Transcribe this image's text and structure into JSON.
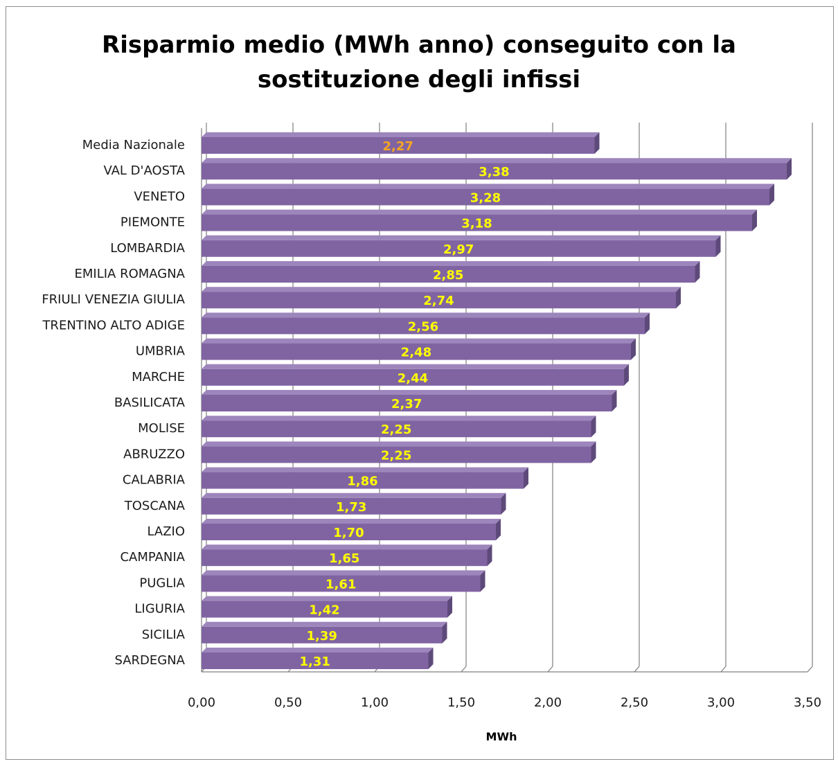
{
  "chart_data": {
    "type": "bar",
    "orientation": "horizontal",
    "title_lines": [
      "Risparmio medio (MWh  anno) conseguito con la",
      "sostituzione degli infissi"
    ],
    "xlabel": "MWh",
    "ylabel": "",
    "xlim": [
      0,
      3.5
    ],
    "ticks": [
      "0,00",
      "0,50",
      "1,00",
      "1,50",
      "2,00",
      "2,50",
      "3,00",
      "3,50"
    ],
    "grid": true,
    "legend": "none",
    "categories": [
      "Media Nazionale",
      "VAL D'AOSTA",
      "VENETO",
      "PIEMONTE",
      "LOMBARDIA",
      "EMILIA ROMAGNA",
      "FRIULI VENEZIA GIULIA",
      "TRENTINO ALTO ADIGE",
      "UMBRIA",
      "MARCHE",
      "BASILICATA",
      "MOLISE",
      "ABRUZZO",
      "CALABRIA",
      "TOSCANA",
      "LAZIO",
      "CAMPANIA",
      "PUGLIA",
      "LIGURIA",
      "SICILIA",
      "SARDEGNA"
    ],
    "values": [
      2.27,
      3.38,
      3.28,
      3.18,
      2.97,
      2.85,
      2.74,
      2.56,
      2.48,
      2.44,
      2.37,
      2.25,
      2.25,
      1.86,
      1.73,
      1.7,
      1.65,
      1.61,
      1.42,
      1.39,
      1.31
    ],
    "data_labels": [
      "2,27",
      "3,38",
      "3,28",
      "3,18",
      "2,97",
      "2,85",
      "2,74",
      "2,56",
      "2,48",
      "2,44",
      "2,37",
      "2,25",
      "2,25",
      "1,86",
      "1,73",
      "1,70",
      "1,65",
      "1,61",
      "1,42",
      "1,39",
      "1,31"
    ],
    "colors": {
      "bar_front": "#8064a2",
      "bar_top": "#9d86bc",
      "bar_side": "#5e4a7a",
      "label_highlight": "#f5a623",
      "label_default": "#ffff00",
      "gridline": "#7f7f7f"
    }
  }
}
